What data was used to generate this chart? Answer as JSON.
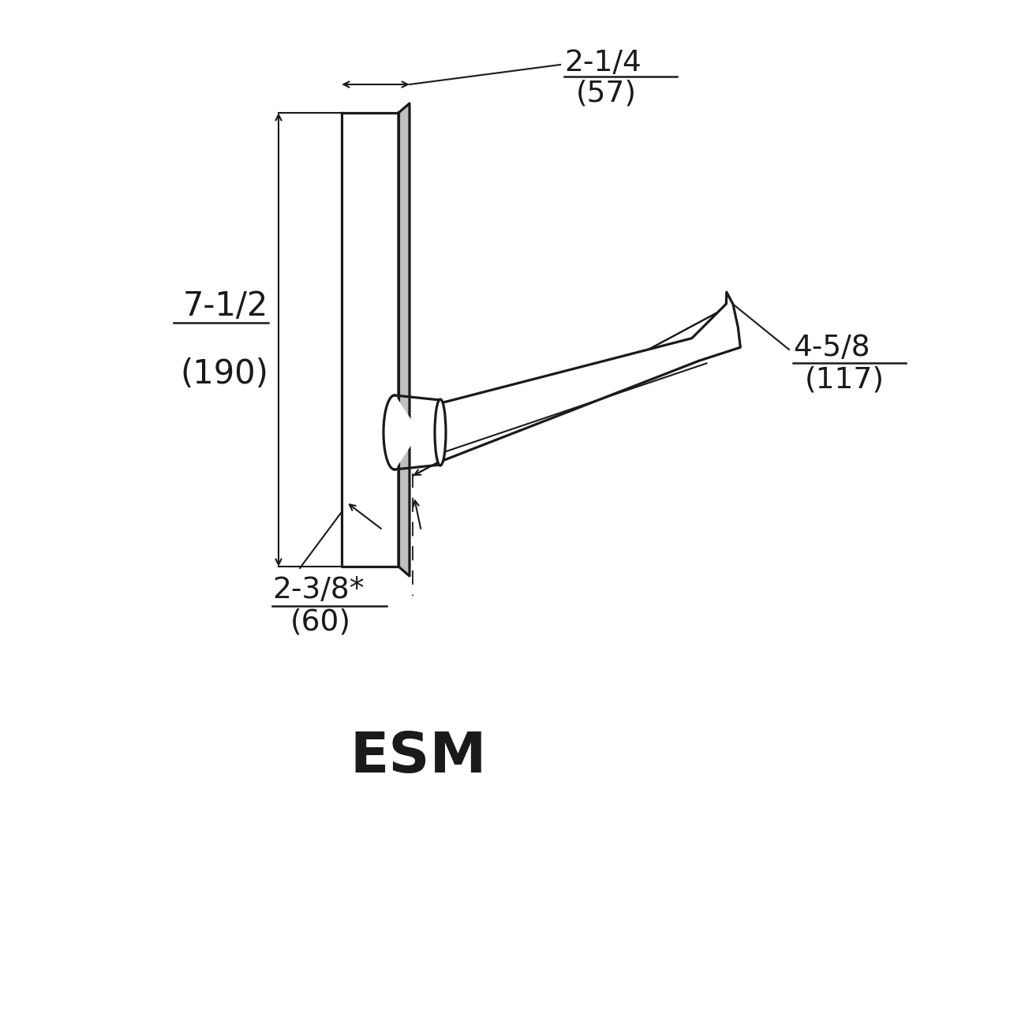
{
  "bg_color": "#ffffff",
  "lc": "#1a1a1a",
  "label_ESM": "ESM",
  "dim1_frac": "2-1/4",
  "dim1_mm": "(57)",
  "dim2_frac": "7-1/2",
  "dim2_mm": "(190)",
  "dim3_frac": "4-5/8",
  "dim3_mm": "(117)",
  "dim4_frac": "2-3/8*",
  "dim4_mm": "(60)"
}
